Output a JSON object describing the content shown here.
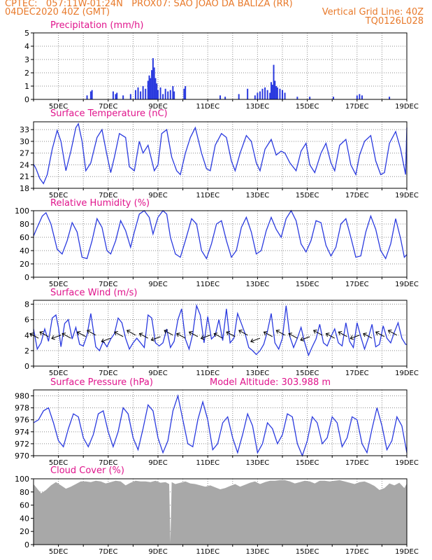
{
  "header": {
    "left_line1": "CPTEC:   057:11W-01:24N   PROX07: SAO JOAO DA BALIZA (RR)",
    "left_line2": "04DEC2020 40Z (GMT)",
    "right_line2": "Vertical Grid Line: 40Z",
    "right_line3": "TQ0126L028"
  },
  "colors": {
    "series": "#2a3adf",
    "cloud": "#a8a8a8",
    "title": "#e0148c",
    "header": "#e8792a",
    "grid": "#8c8c8c"
  },
  "x_tick_labels": [
    "5DEC",
    "7DEC",
    "9DEC",
    "11DEC",
    "13DEC",
    "15DEC",
    "17DEC",
    "19DEC"
  ],
  "x_domain_days": [
    4.0,
    19.0
  ],
  "chart_data": [
    {
      "id": "precip",
      "type": "bar",
      "title": "Precipitation (mm/h)",
      "ylim": [
        0,
        5
      ],
      "yticks": [
        0,
        1,
        2,
        3,
        4,
        5
      ],
      "x": [
        6.15,
        6.3,
        6.35,
        7.2,
        7.3,
        7.35,
        7.6,
        7.9,
        8.1,
        8.2,
        8.3,
        8.4,
        8.5,
        8.6,
        8.65,
        8.7,
        8.75,
        8.8,
        8.85,
        8.9,
        8.95,
        9.0,
        9.1,
        9.2,
        9.3,
        9.4,
        9.5,
        9.6,
        9.65,
        10.05,
        10.1,
        11.5,
        11.7,
        12.25,
        12.6,
        12.9,
        13.0,
        13.1,
        13.2,
        13.3,
        13.4,
        13.5,
        13.55,
        13.6,
        13.65,
        13.7,
        13.75,
        13.8,
        13.9,
        14.0,
        14.1,
        14.6,
        15.1,
        16.05,
        17.0,
        17.1,
        17.2,
        18.3
      ],
      "values": [
        0.3,
        0.6,
        0.7,
        0.6,
        0.4,
        0.5,
        0.3,
        0.4,
        0.7,
        0.9,
        0.6,
        1.0,
        0.8,
        1.4,
        1.8,
        1.6,
        2.2,
        3.1,
        2.4,
        1.6,
        1.2,
        0.7,
        0.9,
        0.4,
        0.8,
        0.6,
        0.7,
        1.0,
        0.6,
        0.8,
        1.0,
        0.3,
        0.2,
        0.4,
        0.8,
        0.3,
        0.5,
        0.6,
        0.8,
        0.9,
        0.7,
        0.5,
        1.3,
        1.1,
        2.6,
        1.4,
        1.0,
        0.9,
        0.8,
        0.7,
        0.5,
        0.2,
        0.2,
        0.2,
        0.3,
        0.4,
        0.3,
        0.2
      ]
    },
    {
      "id": "temp",
      "type": "line",
      "title": "Surface Temperature (nC)",
      "ylim": [
        18,
        35
      ],
      "yticks": [
        18,
        21,
        24,
        27,
        30,
        33
      ],
      "x": [
        4.0,
        4.1,
        4.25,
        4.4,
        4.55,
        4.75,
        4.95,
        5.1,
        5.3,
        5.5,
        5.7,
        5.8,
        5.95,
        6.1,
        6.3,
        6.55,
        6.75,
        6.95,
        7.1,
        7.25,
        7.45,
        7.7,
        7.85,
        8.05,
        8.25,
        8.4,
        8.6,
        8.85,
        9.0,
        9.15,
        9.35,
        9.55,
        9.75,
        9.9,
        10.1,
        10.3,
        10.5,
        10.75,
        10.95,
        11.1,
        11.3,
        11.55,
        11.75,
        11.95,
        12.1,
        12.3,
        12.55,
        12.75,
        12.95,
        13.1,
        13.3,
        13.55,
        13.75,
        13.95,
        14.1,
        14.3,
        14.55,
        14.75,
        14.95,
        15.1,
        15.3,
        15.55,
        15.75,
        15.95,
        16.1,
        16.3,
        16.55,
        16.75,
        16.95,
        17.1,
        17.3,
        17.55,
        17.75,
        17.95,
        18.1,
        18.3,
        18.55,
        18.75,
        18.95,
        19.0
      ],
      "values": [
        24.2,
        23.0,
        20.5,
        19.2,
        21.5,
        28.0,
        32.8,
        30.0,
        22.5,
        27.5,
        33.5,
        34.5,
        30.0,
        22.5,
        24.5,
        31.0,
        33.0,
        26.5,
        22.0,
        26.0,
        32.0,
        31.0,
        23.5,
        22.5,
        30.0,
        27.0,
        29.0,
        22.5,
        24.0,
        32.0,
        33.0,
        26.0,
        22.5,
        21.5,
        27.0,
        31.0,
        33.5,
        27.0,
        23.0,
        22.5,
        29.0,
        32.0,
        31.0,
        25.0,
        22.5,
        27.0,
        31.5,
        30.0,
        24.5,
        22.5,
        28.0,
        30.5,
        26.5,
        27.5,
        27.0,
        24.5,
        22.5,
        27.5,
        29.5,
        24.0,
        22.0,
        27.0,
        29.5,
        24.5,
        22.5,
        29.0,
        30.5,
        24.0,
        21.5,
        26.5,
        30.0,
        31.5,
        25.0,
        21.5,
        22.0,
        29.5,
        32.5,
        28.0,
        21.5,
        33.5
      ]
    },
    {
      "id": "rh",
      "type": "line",
      "title": "Relative Humidity (%)",
      "ylim": [
        0,
        100
      ],
      "yticks": [
        0,
        20,
        40,
        60,
        80,
        100
      ],
      "x": [
        4.0,
        4.15,
        4.35,
        4.5,
        4.7,
        4.95,
        5.15,
        5.35,
        5.55,
        5.75,
        5.95,
        6.15,
        6.35,
        6.55,
        6.75,
        6.95,
        7.1,
        7.3,
        7.5,
        7.7,
        7.9,
        8.05,
        8.25,
        8.45,
        8.65,
        8.8,
        9.0,
        9.2,
        9.35,
        9.5,
        9.7,
        9.9,
        10.1,
        10.35,
        10.55,
        10.75,
        10.95,
        11.15,
        11.35,
        11.55,
        11.75,
        11.95,
        12.15,
        12.35,
        12.55,
        12.75,
        12.95,
        13.15,
        13.35,
        13.55,
        13.75,
        13.95,
        14.15,
        14.35,
        14.55,
        14.75,
        14.95,
        15.15,
        15.35,
        15.55,
        15.75,
        15.95,
        16.15,
        16.35,
        16.55,
        16.75,
        16.95,
        17.15,
        17.35,
        17.55,
        17.75,
        17.95,
        18.15,
        18.35,
        18.55,
        18.75,
        18.9,
        19.0
      ],
      "values": [
        62.0,
        75.0,
        92.0,
        97.0,
        80.0,
        42.0,
        35.0,
        55.0,
        82.0,
        68.0,
        30.0,
        28.0,
        55.0,
        88.0,
        75.0,
        40.0,
        35.0,
        55.0,
        85.0,
        70.0,
        45.0,
        68.0,
        95.0,
        100.0,
        90.0,
        65.0,
        90.0,
        100.0,
        95.0,
        60.0,
        35.0,
        30.0,
        55.0,
        88.0,
        80.0,
        40.0,
        28.0,
        50.0,
        80.0,
        85.0,
        55.0,
        30.0,
        40.0,
        75.0,
        90.0,
        68.0,
        35.0,
        40.0,
        70.0,
        90.0,
        72.0,
        60.0,
        88.0,
        100.0,
        85.0,
        50.0,
        38.0,
        55.0,
        85.0,
        82.0,
        48.0,
        32.0,
        45.0,
        80.0,
        88.0,
        60.0,
        30.0,
        32.0,
        68.0,
        92.0,
        72.0,
        40.0,
        28.0,
        50.0,
        88.0,
        58.0,
        30.0,
        34.0
      ]
    },
    {
      "id": "wind",
      "type": "line",
      "title": "Surface Wind (m/s)",
      "ylim": [
        0,
        8.5
      ],
      "yticks": [
        0,
        2,
        4,
        6,
        8
      ],
      "x": [
        4.0,
        4.15,
        4.3,
        4.45,
        4.6,
        4.75,
        4.9,
        5.0,
        5.1,
        5.25,
        5.4,
        5.55,
        5.7,
        5.85,
        6.0,
        6.15,
        6.3,
        6.5,
        6.65,
        6.8,
        6.95,
        7.1,
        7.25,
        7.4,
        7.55,
        7.7,
        7.85,
        8.0,
        8.15,
        8.3,
        8.45,
        8.6,
        8.75,
        8.9,
        9.05,
        9.2,
        9.35,
        9.5,
        9.65,
        9.8,
        9.95,
        10.1,
        10.25,
        10.4,
        10.55,
        10.7,
        10.85,
        11.0,
        11.15,
        11.3,
        11.45,
        11.6,
        11.75,
        11.9,
        12.05,
        12.2,
        12.35,
        12.5,
        12.65,
        12.8,
        12.95,
        13.1,
        13.25,
        13.4,
        13.55,
        13.7,
        13.85,
        14.0,
        14.15,
        14.3,
        14.45,
        14.6,
        14.75,
        14.9,
        15.05,
        15.2,
        15.35,
        15.5,
        15.65,
        15.8,
        15.95,
        16.1,
        16.25,
        16.4,
        16.55,
        16.7,
        16.85,
        17.0,
        17.15,
        17.3,
        17.45,
        17.6,
        17.75,
        17.9,
        18.05,
        18.2,
        18.35,
        18.5,
        18.65,
        18.8,
        18.95,
        19.0
      ],
      "values": [
        4.8,
        2.2,
        3.0,
        4.8,
        3.2,
        6.2,
        6.6,
        5.0,
        2.5,
        5.5,
        6.0,
        3.5,
        5.0,
        2.8,
        2.6,
        4.0,
        6.8,
        2.5,
        2.0,
        3.2,
        2.5,
        3.5,
        4.2,
        6.2,
        5.6,
        3.6,
        2.2,
        3.0,
        3.6,
        3.0,
        2.4,
        6.6,
        6.2,
        3.0,
        2.6,
        3.0,
        4.8,
        2.4,
        3.2,
        6.0,
        7.4,
        3.5,
        2.2,
        4.2,
        7.8,
        6.6,
        3.0,
        6.4,
        3.5,
        4.0,
        6.0,
        3.3,
        7.4,
        3.0,
        3.6,
        6.8,
        5.5,
        4.2,
        2.4,
        2.0,
        1.5,
        2.0,
        2.8,
        4.5,
        6.8,
        3.0,
        2.2,
        3.6,
        7.8,
        3.8,
        2.4,
        3.6,
        5.0,
        3.0,
        1.4,
        2.5,
        3.5,
        5.4,
        3.0,
        2.6,
        3.8,
        4.8,
        3.0,
        2.6,
        5.6,
        3.2,
        2.4,
        5.6,
        3.8,
        2.2,
        3.6,
        5.4,
        2.5,
        2.8,
        5.2,
        3.6,
        3.0,
        4.4,
        5.6,
        3.6,
        2.8,
        2.8
      ]
    },
    {
      "id": "pressure",
      "type": "line",
      "title": "Surface Pressure (hPa)",
      "annotation": "Model Altitude: 303.988 m",
      "ylim": [
        970,
        981
      ],
      "yticks": [
        970,
        972,
        974,
        976,
        978,
        980
      ],
      "x": [
        4.0,
        4.2,
        4.4,
        4.6,
        4.8,
        5.0,
        5.2,
        5.4,
        5.6,
        5.8,
        6.0,
        6.2,
        6.4,
        6.6,
        6.8,
        7.0,
        7.2,
        7.4,
        7.6,
        7.8,
        8.0,
        8.2,
        8.4,
        8.6,
        8.8,
        9.0,
        9.2,
        9.4,
        9.6,
        9.8,
        10.0,
        10.2,
        10.4,
        10.6,
        10.8,
        11.0,
        11.2,
        11.4,
        11.6,
        11.8,
        12.0,
        12.2,
        12.4,
        12.6,
        12.8,
        13.0,
        13.2,
        13.4,
        13.6,
        13.8,
        14.0,
        14.2,
        14.4,
        14.6,
        14.8,
        15.0,
        15.2,
        15.4,
        15.6,
        15.8,
        16.0,
        16.2,
        16.4,
        16.6,
        16.8,
        17.0,
        17.2,
        17.4,
        17.6,
        17.8,
        18.0,
        18.2,
        18.4,
        18.6,
        18.8,
        19.0
      ],
      "values": [
        975.5,
        976.0,
        977.5,
        978.0,
        975.5,
        972.5,
        971.5,
        974.5,
        977.0,
        976.5,
        973.0,
        971.5,
        973.5,
        977.0,
        977.5,
        974.0,
        971.5,
        974.0,
        978.0,
        977.0,
        973.0,
        971.0,
        974.5,
        978.5,
        977.5,
        973.0,
        970.5,
        972.5,
        977.5,
        980.0,
        976.0,
        972.0,
        971.5,
        976.0,
        979.0,
        976.0,
        971.0,
        972.0,
        975.5,
        976.5,
        973.0,
        970.5,
        973.5,
        977.0,
        975.0,
        970.5,
        972.0,
        975.5,
        974.5,
        972.0,
        973.5,
        977.0,
        976.5,
        972.0,
        970.0,
        972.5,
        976.5,
        975.5,
        972.0,
        973.0,
        976.5,
        975.5,
        971.5,
        973.0,
        976.5,
        976.0,
        972.0,
        970.5,
        974.5,
        978.0,
        975.0,
        971.0,
        972.5,
        976.5,
        975.0,
        970.5
      ]
    },
    {
      "id": "cloud",
      "type": "area",
      "title": "Cloud Cover (%)",
      "ylim": [
        0,
        100
      ],
      "yticks": [
        0,
        20,
        40,
        60,
        80,
        100
      ],
      "x": [
        4.0,
        4.15,
        4.3,
        4.5,
        4.7,
        4.9,
        5.1,
        5.3,
        5.5,
        5.7,
        5.9,
        6.1,
        6.3,
        6.5,
        6.7,
        6.9,
        7.1,
        7.3,
        7.5,
        7.7,
        7.9,
        8.1,
        8.3,
        8.5,
        8.7,
        8.9,
        9.1,
        9.3,
        9.45,
        9.5,
        9.55,
        9.7,
        9.9,
        10.1,
        10.3,
        10.5,
        10.7,
        10.9,
        11.1,
        11.3,
        11.5,
        11.7,
        11.9,
        12.1,
        12.3,
        12.5,
        12.7,
        12.9,
        13.1,
        13.3,
        13.5,
        13.7,
        13.9,
        14.1,
        14.3,
        14.5,
        14.7,
        14.9,
        15.1,
        15.3,
        15.5,
        15.7,
        15.9,
        16.1,
        16.3,
        16.5,
        16.7,
        16.9,
        17.1,
        17.3,
        17.5,
        17.7,
        17.9,
        18.1,
        18.3,
        18.5,
        18.7,
        18.9,
        19.0
      ],
      "values": [
        92.0,
        85.0,
        78.0,
        83.0,
        90.0,
        95.0,
        90.0,
        85.0,
        88.0,
        92.0,
        96.0,
        96.0,
        95.0,
        97.0,
        96.0,
        93.0,
        95.0,
        97.0,
        96.0,
        90.0,
        94.0,
        97.0,
        96.0,
        96.0,
        95.0,
        97.0,
        94.0,
        95.0,
        92.0,
        3.0,
        95.0,
        92.0,
        94.0,
        96.0,
        93.0,
        92.0,
        90.0,
        88.0,
        90.0,
        87.0,
        84.0,
        86.0,
        89.0,
        92.0,
        88.0,
        91.0,
        94.0,
        96.0,
        92.0,
        95.0,
        97.0,
        97.0,
        98.0,
        98.0,
        96.0,
        93.0,
        95.0,
        97.0,
        96.0,
        93.0,
        97.0,
        97.0,
        96.0,
        97.0,
        98.0,
        96.0,
        94.0,
        92.0,
        95.0,
        96.0,
        93.0,
        89.0,
        83.0,
        86.0,
        93.0,
        90.0,
        94.0,
        86.0,
        93.0
      ]
    }
  ]
}
